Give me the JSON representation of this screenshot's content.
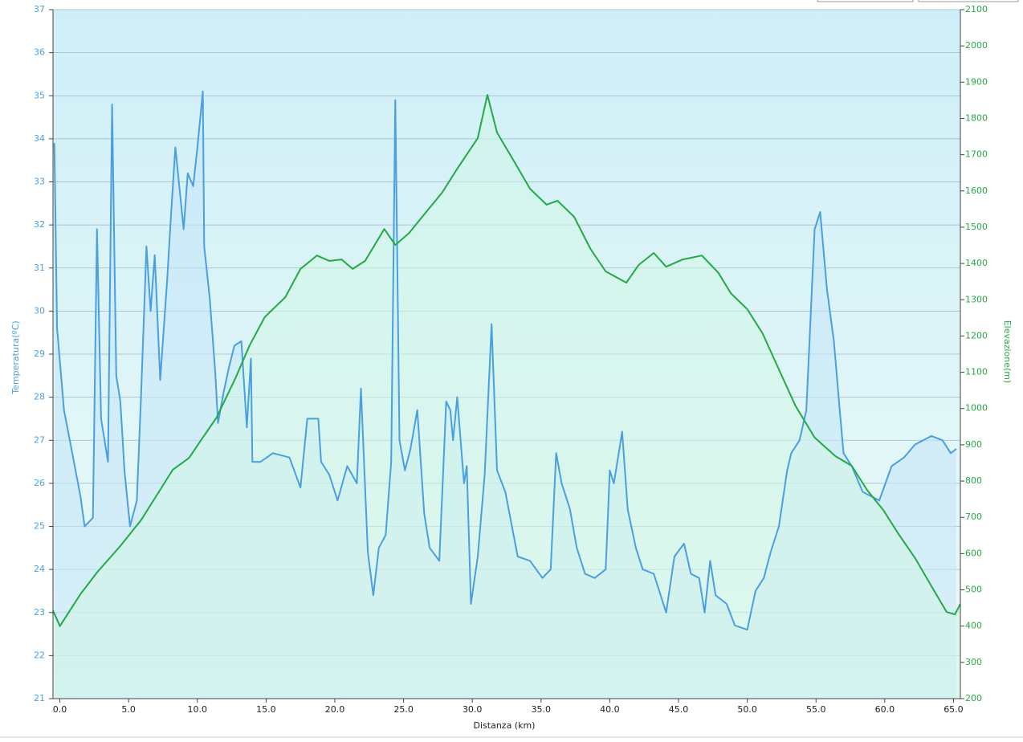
{
  "chart_data": {
    "type": "line",
    "x_label": "Distanza  (km)",
    "y_label": "Temperatura(ºC)",
    "y2_label": "Elevazione(m)",
    "xlim": [
      -0.5,
      65.5
    ],
    "xticks": [
      {
        "value": 0,
        "label": "0.0"
      },
      {
        "value": 5,
        "label": "5.0"
      },
      {
        "value": 10,
        "label": "10.0"
      },
      {
        "value": 15,
        "label": "15.0"
      },
      {
        "value": 20,
        "label": "20.0"
      },
      {
        "value": 25,
        "label": "25.0"
      },
      {
        "value": 30,
        "label": "30.0"
      },
      {
        "value": 35,
        "label": "35.0"
      },
      {
        "value": 40,
        "label": "40.0"
      },
      {
        "value": 45,
        "label": "45.0"
      },
      {
        "value": 50,
        "label": "50.0"
      },
      {
        "value": 55,
        "label": "55.0"
      },
      {
        "value": 60,
        "label": "60.0"
      },
      {
        "value": 65,
        "label": "65.0"
      }
    ],
    "ylim": [
      21,
      37
    ],
    "yticks": [
      21,
      22,
      23,
      24,
      25,
      26,
      27,
      28,
      29,
      30,
      31,
      32,
      33,
      34,
      35,
      36,
      37
    ],
    "y2lim": [
      200,
      2100
    ],
    "y2ticks": [
      200,
      300,
      400,
      500,
      600,
      700,
      800,
      900,
      1000,
      1100,
      1200,
      1300,
      1400,
      1500,
      1600,
      1700,
      1800,
      1900,
      2000,
      2100
    ],
    "grid": true,
    "series": [
      {
        "name": "Temperatura",
        "color": "#4a9fe0",
        "fill": "#c4e6fa",
        "axis": "y",
        "x": [
          -0.4,
          -0.2,
          0.3,
          0.9,
          1.5,
          1.8,
          2.4,
          2.7,
          3.0,
          3.5,
          3.8,
          4.1,
          4.4,
          4.7,
          5.1,
          5.6,
          5.9,
          6.3,
          6.6,
          6.9,
          7.3,
          7.8,
          8.1,
          8.4,
          9.0,
          9.3,
          9.7,
          10.0,
          10.4,
          10.5,
          10.9,
          11.3,
          11.5,
          11.9,
          12.3,
          12.7,
          13.2,
          13.6,
          13.9,
          14.0,
          14.6,
          15.5,
          16.7,
          17.5,
          18.0,
          18.8,
          19.0,
          19.6,
          20.2,
          20.9,
          21.6,
          21.9,
          22.4,
          22.8,
          23.2,
          23.7,
          24.1,
          24.4,
          24.7,
          25.1,
          25.5,
          26.0,
          26.5,
          26.9,
          27.6,
          28.1,
          28.4,
          28.6,
          28.9,
          29.4,
          29.6,
          29.9,
          30.4,
          30.9,
          31.4,
          31.8,
          32.4,
          33.3,
          34.2,
          35.1,
          35.7,
          36.1,
          36.5,
          37.1,
          37.6,
          38.2,
          38.9,
          39.7,
          40.0,
          40.3,
          40.9,
          41.3,
          41.9,
          42.4,
          43.2,
          44.1,
          44.7,
          45.4,
          45.9,
          46.5,
          46.9,
          47.3,
          47.7,
          48.5,
          49.1,
          50.0,
          50.6,
          51.2,
          51.7,
          52.3,
          52.9,
          53.2,
          53.8,
          54.3,
          54.9,
          55.3,
          55.8,
          56.3,
          56.7,
          57.0,
          57.6,
          58.4,
          59.6,
          60.5,
          61.4,
          62.2,
          63.4,
          64.2,
          64.8,
          65.2
        ],
        "values": [
          33.9,
          29.6,
          27.7,
          26.7,
          25.7,
          25.0,
          25.2,
          31.9,
          27.5,
          26.5,
          34.8,
          28.5,
          27.9,
          26.3,
          25.0,
          25.6,
          28.0,
          31.5,
          30.0,
          31.3,
          28.4,
          30.7,
          32.3,
          33.8,
          31.9,
          33.2,
          32.9,
          33.8,
          35.1,
          31.5,
          30.3,
          28.6,
          27.4,
          28.1,
          28.7,
          29.2,
          29.3,
          27.3,
          28.9,
          26.5,
          26.5,
          26.7,
          26.6,
          25.9,
          27.5,
          27.5,
          26.5,
          26.2,
          25.6,
          26.4,
          26.0,
          28.2,
          24.4,
          23.4,
          24.5,
          24.8,
          26.5,
          34.9,
          27.0,
          26.3,
          26.8,
          27.7,
          25.3,
          24.5,
          24.2,
          27.9,
          27.7,
          27.0,
          28.0,
          26.0,
          26.4,
          23.2,
          24.3,
          26.2,
          29.7,
          26.3,
          25.8,
          24.3,
          24.2,
          23.8,
          24.0,
          26.7,
          26.0,
          25.4,
          24.5,
          23.9,
          23.8,
          24.0,
          26.3,
          26.0,
          27.2,
          25.4,
          24.5,
          24.0,
          23.9,
          23.0,
          24.3,
          24.6,
          23.9,
          23.8,
          23.0,
          24.2,
          23.4,
          23.2,
          22.7,
          22.6,
          23.5,
          23.8,
          24.4,
          25.0,
          26.3,
          26.7,
          27.0,
          27.7,
          31.9,
          32.3,
          30.5,
          29.3,
          27.8,
          26.7,
          26.4,
          25.8,
          25.6,
          26.4,
          26.6,
          26.9,
          27.1,
          27.0,
          26.7,
          26.8
        ]
      },
      {
        "name": "Elevazione",
        "color": "#22aa44",
        "fill": "#d2f5e6",
        "axis": "y2",
        "x": [
          -0.5,
          0.0,
          1.5,
          2.7,
          4.4,
          5.9,
          7.3,
          8.2,
          9.4,
          10.2,
          11.4,
          12.8,
          13.8,
          14.9,
          16.4,
          17.5,
          18.7,
          19.6,
          20.5,
          21.3,
          22.2,
          23.6,
          24.4,
          25.4,
          26.6,
          27.8,
          28.9,
          30.4,
          31.1,
          31.8,
          33.0,
          34.2,
          35.4,
          36.2,
          37.4,
          38.6,
          39.7,
          41.2,
          42.1,
          43.2,
          44.1,
          45.3,
          46.7,
          47.9,
          48.8,
          50.0,
          51.1,
          52.3,
          53.5,
          54.9,
          56.4,
          57.6,
          58.7,
          59.9,
          61.0,
          62.2,
          63.4,
          64.5,
          65.1,
          65.5
        ],
        "values": [
          443,
          400,
          488,
          548,
          621,
          692,
          776,
          831,
          864,
          909,
          975,
          1086,
          1174,
          1252,
          1307,
          1385,
          1422,
          1407,
          1411,
          1385,
          1407,
          1495,
          1451,
          1484,
          1540,
          1595,
          1661,
          1746,
          1865,
          1761,
          1684,
          1606,
          1562,
          1573,
          1529,
          1440,
          1378,
          1347,
          1396,
          1429,
          1391,
          1411,
          1422,
          1374,
          1318,
          1274,
          1208,
          1108,
          1008,
          920,
          869,
          842,
          776,
          720,
          654,
          588,
          510,
          439,
          432,
          461
        ]
      }
    ]
  }
}
